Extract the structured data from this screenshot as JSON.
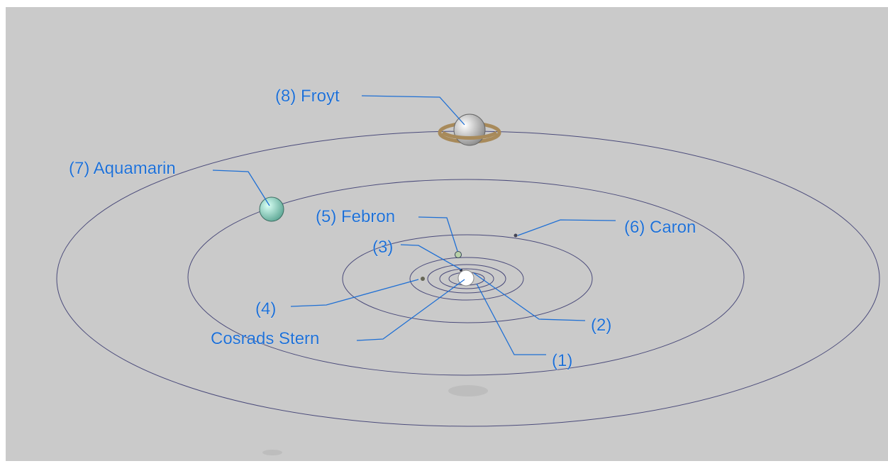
{
  "nodes": [
    {
      "label": "(8) Froyt"
    },
    {
      "label": "(7) Aquamarin"
    },
    {
      "label": "(5) Febron"
    },
    {
      "label": "(6) Caron"
    },
    {
      "label": "(3)"
    },
    {
      "label": "(4)"
    },
    {
      "label": "Cosrads Stern"
    },
    {
      "label": "(2)"
    },
    {
      "label": "(1)"
    }
  ]
}
